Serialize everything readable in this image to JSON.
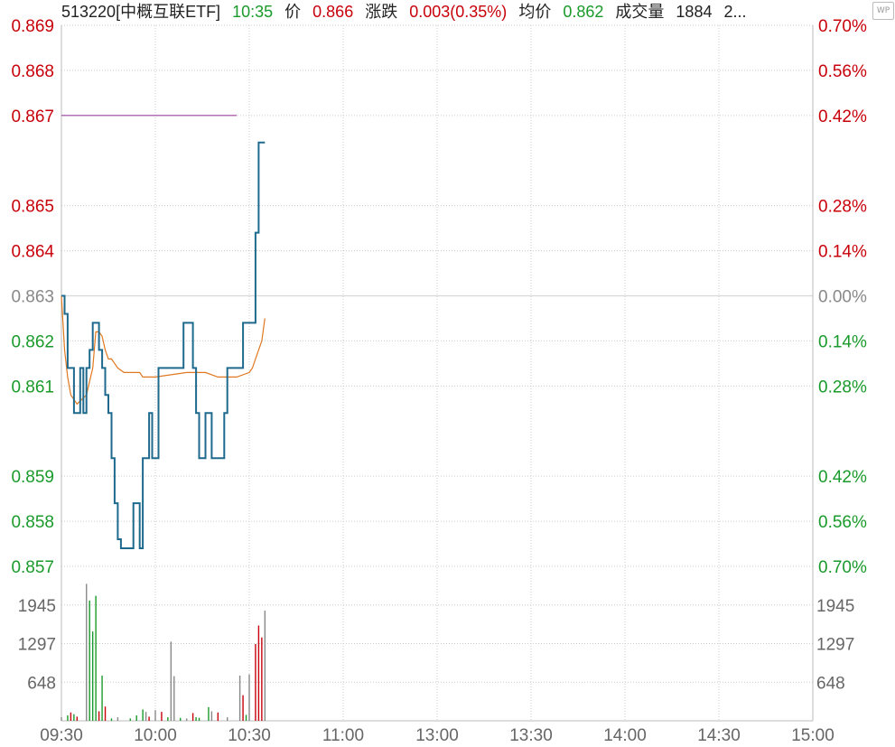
{
  "header": {
    "code_name": "513220[中概互联ETF]",
    "time": "10:35",
    "price_label": "价",
    "price_value": "0.866",
    "change_label": "涨跌",
    "change_value": "0.003(0.35%)",
    "avg_label": "均价",
    "avg_value": "0.862",
    "volume_label": "成交量",
    "volume_value": "1884",
    "truncated": "2..."
  },
  "icon": {
    "name": "wp-icon",
    "text": "WP"
  },
  "colors": {
    "up": "#c8000a",
    "down": "#1a9a2a",
    "neutral": "#888888",
    "price_line": "#1e6a8e",
    "avg_line": "#e07820",
    "prev_high_line": "#a040a0",
    "grid": "#cccccc"
  },
  "chart_data": {
    "type": "line",
    "title": "",
    "prev_close": 0.863,
    "x_ticks": [
      "09:30",
      "10:00",
      "10:30",
      "11:00",
      "13:00",
      "13:30",
      "14:00",
      "14:30",
      "15:00"
    ],
    "price_ticks_left": [
      {
        "label": "0.869",
        "value": 0.869,
        "tone": "up"
      },
      {
        "label": "0.868",
        "value": 0.868,
        "tone": "up"
      },
      {
        "label": "0.867",
        "value": 0.867,
        "tone": "up"
      },
      {
        "label": "0.865",
        "value": 0.865,
        "tone": "up"
      },
      {
        "label": "0.864",
        "value": 0.864,
        "tone": "up"
      },
      {
        "label": "0.863",
        "value": 0.863,
        "tone": "neutral"
      },
      {
        "label": "0.862",
        "value": 0.862,
        "tone": "down"
      },
      {
        "label": "0.861",
        "value": 0.861,
        "tone": "down"
      },
      {
        "label": "0.859",
        "value": 0.859,
        "tone": "down"
      },
      {
        "label": "0.858",
        "value": 0.858,
        "tone": "down"
      },
      {
        "label": "0.857",
        "value": 0.857,
        "tone": "down"
      }
    ],
    "pct_ticks_right": [
      {
        "label": "0.70%",
        "tone": "up"
      },
      {
        "label": "0.56%",
        "tone": "up"
      },
      {
        "label": "0.42%",
        "tone": "up"
      },
      {
        "label": "0.28%",
        "tone": "up"
      },
      {
        "label": "0.14%",
        "tone": "up"
      },
      {
        "label": "0.00%",
        "tone": "neutral"
      },
      {
        "label": "0.14%",
        "tone": "down"
      },
      {
        "label": "0.28%",
        "tone": "down"
      },
      {
        "label": "0.42%",
        "tone": "down"
      },
      {
        "label": "0.56%",
        "tone": "down"
      },
      {
        "label": "0.70%",
        "tone": "down"
      }
    ],
    "volume_ticks": [
      "1945",
      "1297",
      "648"
    ],
    "volume_tick_values": [
      1945,
      1297,
      648
    ],
    "volume_max": 2594,
    "price_min": 0.857,
    "price_max": 0.869,
    "price_series": [
      [
        0,
        0.863
      ],
      [
        1,
        0.8626
      ],
      [
        2,
        0.8614
      ],
      [
        3,
        0.8614
      ],
      [
        4,
        0.8604
      ],
      [
        5,
        0.8604
      ],
      [
        6,
        0.8614
      ],
      [
        7,
        0.8604
      ],
      [
        8,
        0.8614
      ],
      [
        9,
        0.8618
      ],
      [
        10,
        0.8624
      ],
      [
        11,
        0.8624
      ],
      [
        12,
        0.8618
      ],
      [
        13,
        0.8614
      ],
      [
        14,
        0.8608
      ],
      [
        15,
        0.8604
      ],
      [
        16,
        0.8594
      ],
      [
        17,
        0.8584
      ],
      [
        18,
        0.8576
      ],
      [
        19,
        0.8574
      ],
      [
        20,
        0.8574
      ],
      [
        21,
        0.8574
      ],
      [
        22,
        0.8574
      ],
      [
        23,
        0.8584
      ],
      [
        24,
        0.8584
      ],
      [
        25,
        0.8574
      ],
      [
        26,
        0.8594
      ],
      [
        27,
        0.8594
      ],
      [
        28,
        0.8604
      ],
      [
        29,
        0.8594
      ],
      [
        30,
        0.8594
      ],
      [
        31,
        0.8614
      ],
      [
        32,
        0.8614
      ],
      [
        33,
        0.8614
      ],
      [
        34,
        0.8614
      ],
      [
        35,
        0.8614
      ],
      [
        36,
        0.8614
      ],
      [
        37,
        0.8614
      ],
      [
        38,
        0.8614
      ],
      [
        39,
        0.8624
      ],
      [
        40,
        0.8624
      ],
      [
        41,
        0.8624
      ],
      [
        42,
        0.8614
      ],
      [
        43,
        0.8604
      ],
      [
        44,
        0.8594
      ],
      [
        45,
        0.8594
      ],
      [
        46,
        0.8604
      ],
      [
        47,
        0.8604
      ],
      [
        48,
        0.8594
      ],
      [
        49,
        0.8594
      ],
      [
        50,
        0.8594
      ],
      [
        51,
        0.8594
      ],
      [
        52,
        0.8604
      ],
      [
        53,
        0.8614
      ],
      [
        54,
        0.8614
      ],
      [
        55,
        0.8614
      ],
      [
        56,
        0.8614
      ],
      [
        57,
        0.8614
      ],
      [
        58,
        0.8624
      ],
      [
        59,
        0.8624
      ],
      [
        60,
        0.8624
      ],
      [
        61,
        0.8624
      ],
      [
        62,
        0.8644
      ],
      [
        63,
        0.8664
      ],
      [
        64,
        0.8664
      ],
      [
        65,
        0.8664
      ]
    ],
    "avg_series": [
      [
        0,
        0.863
      ],
      [
        1,
        0.8618
      ],
      [
        2,
        0.8612
      ],
      [
        3,
        0.8608
      ],
      [
        5,
        0.8606
      ],
      [
        8,
        0.8608
      ],
      [
        10,
        0.8614
      ],
      [
        11,
        0.8622
      ],
      [
        12,
        0.8622
      ],
      [
        13,
        0.8621
      ],
      [
        14,
        0.8618
      ],
      [
        15,
        0.8616
      ],
      [
        16,
        0.8616
      ],
      [
        17,
        0.8615
      ],
      [
        18,
        0.8614
      ],
      [
        20,
        0.8613
      ],
      [
        25,
        0.8613
      ],
      [
        26,
        0.8612
      ],
      [
        30,
        0.8612
      ],
      [
        40,
        0.8613
      ],
      [
        46,
        0.8613
      ],
      [
        50,
        0.8612
      ],
      [
        56,
        0.8612
      ],
      [
        60,
        0.8613
      ],
      [
        61,
        0.8614
      ],
      [
        62,
        0.8616
      ],
      [
        64,
        0.862
      ],
      [
        65,
        0.8625
      ]
    ],
    "prev_high_line": {
      "value": 0.867,
      "from_minute": 0,
      "to_minute": 56
    },
    "volume_series": [
      {
        "m": 0,
        "v": 60,
        "tone": "neutral"
      },
      {
        "m": 2,
        "v": 90,
        "tone": "down"
      },
      {
        "m": 3,
        "v": 140,
        "tone": "up"
      },
      {
        "m": 4,
        "v": 110,
        "tone": "down"
      },
      {
        "m": 5,
        "v": 70,
        "tone": "up"
      },
      {
        "m": 8,
        "v": 2300,
        "tone": "neutral"
      },
      {
        "m": 9,
        "v": 2020,
        "tone": "down"
      },
      {
        "m": 10,
        "v": 1500,
        "tone": "down"
      },
      {
        "m": 11,
        "v": 2100,
        "tone": "down"
      },
      {
        "m": 12,
        "v": 160,
        "tone": "up"
      },
      {
        "m": 13,
        "v": 760,
        "tone": "down"
      },
      {
        "m": 14,
        "v": 240,
        "tone": "up"
      },
      {
        "m": 16,
        "v": 40,
        "tone": "down"
      },
      {
        "m": 18,
        "v": 60,
        "tone": "neutral"
      },
      {
        "m": 22,
        "v": 40,
        "tone": "down"
      },
      {
        "m": 24,
        "v": 90,
        "tone": "down"
      },
      {
        "m": 26,
        "v": 190,
        "tone": "down"
      },
      {
        "m": 27,
        "v": 150,
        "tone": "neutral"
      },
      {
        "m": 28,
        "v": 70,
        "tone": "up"
      },
      {
        "m": 30,
        "v": 180,
        "tone": "neutral"
      },
      {
        "m": 32,
        "v": 150,
        "tone": "up"
      },
      {
        "m": 34,
        "v": 60,
        "tone": "down"
      },
      {
        "m": 35,
        "v": 1330,
        "tone": "neutral"
      },
      {
        "m": 36,
        "v": 750,
        "tone": "neutral"
      },
      {
        "m": 38,
        "v": 50,
        "tone": "down"
      },
      {
        "m": 40,
        "v": 40,
        "tone": "neutral"
      },
      {
        "m": 42,
        "v": 130,
        "tone": "up"
      },
      {
        "m": 43,
        "v": 60,
        "tone": "down"
      },
      {
        "m": 44,
        "v": 50,
        "tone": "down"
      },
      {
        "m": 47,
        "v": 230,
        "tone": "down"
      },
      {
        "m": 48,
        "v": 160,
        "tone": "neutral"
      },
      {
        "m": 50,
        "v": 140,
        "tone": "up"
      },
      {
        "m": 53,
        "v": 60,
        "tone": "neutral"
      },
      {
        "m": 57,
        "v": 760,
        "tone": "neutral"
      },
      {
        "m": 58,
        "v": 430,
        "tone": "up"
      },
      {
        "m": 59,
        "v": 100,
        "tone": "down"
      },
      {
        "m": 60,
        "v": 780,
        "tone": "neutral"
      },
      {
        "m": 62,
        "v": 1290,
        "tone": "up"
      },
      {
        "m": 63,
        "v": 1600,
        "tone": "up"
      },
      {
        "m": 64,
        "v": 1400,
        "tone": "up"
      },
      {
        "m": 65,
        "v": 1850,
        "tone": "neutral"
      }
    ]
  }
}
